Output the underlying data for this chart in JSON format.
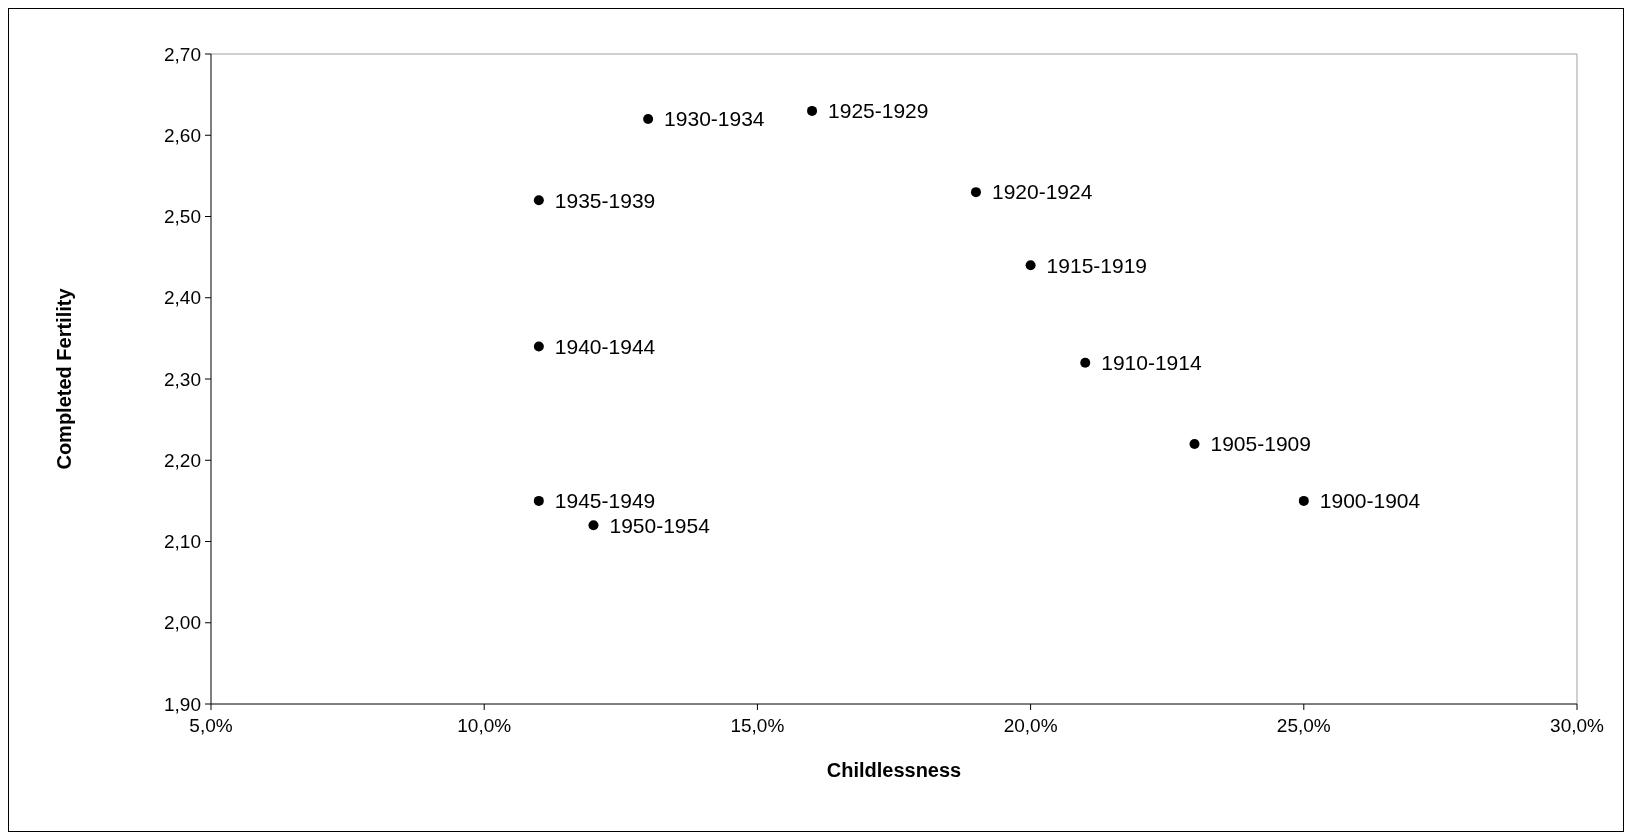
{
  "chart_data": {
    "type": "scatter",
    "xlabel": "Childlessness",
    "ylabel": "Completed Fertility",
    "x": [
      13,
      16,
      11,
      19,
      20,
      11,
      21,
      23,
      25,
      11,
      12
    ],
    "series": [
      {
        "color": "#000000",
        "values": [
          2.62,
          2.63,
          2.52,
          2.53,
          2.44,
          2.34,
          2.32,
          2.22,
          2.15,
          2.15,
          2.12
        ]
      }
    ],
    "annotations": [
      {
        "text": "1930-1934",
        "x": 13,
        "y": 2.62
      },
      {
        "text": "1925-1929",
        "x": 16,
        "y": 2.63
      },
      {
        "text": "1935-1939",
        "x": 11,
        "y": 2.52
      },
      {
        "text": "1920-1924",
        "x": 19,
        "y": 2.53
      },
      {
        "text": "1915-1919",
        "x": 20,
        "y": 2.44
      },
      {
        "text": "1940-1944",
        "x": 11,
        "y": 2.34
      },
      {
        "text": "1910-1914",
        "x": 21,
        "y": 2.32
      },
      {
        "text": "1905-1909",
        "x": 23,
        "y": 2.22
      },
      {
        "text": "1900-1904",
        "x": 25,
        "y": 2.15
      },
      {
        "text": "1945-1949",
        "x": 11,
        "y": 2.15
      },
      {
        "text": "1950-1954",
        "x": 12,
        "y": 2.12
      }
    ],
    "xlim": [
      5,
      30
    ],
    "xticks": [
      {
        "value": 5,
        "label": "5,0%"
      },
      {
        "value": 10,
        "label": "10,0%"
      },
      {
        "value": 15,
        "label": "15,0%"
      },
      {
        "value": 20,
        "label": "20,0%"
      },
      {
        "value": 25,
        "label": "25,0%"
      },
      {
        "value": 30,
        "label": "30,0%"
      }
    ],
    "ylim": [
      1.9,
      2.7
    ],
    "yticks": [
      {
        "value": 1.9,
        "label": "1,90"
      },
      {
        "value": 2.0,
        "label": "2,00"
      },
      {
        "value": 2.1,
        "label": "2,10"
      },
      {
        "value": 2.2,
        "label": "2,20"
      },
      {
        "value": 2.3,
        "label": "2,30"
      },
      {
        "value": 2.4,
        "label": "2,40"
      },
      {
        "value": 2.5,
        "label": "2,50"
      },
      {
        "value": 2.6,
        "label": "2,60"
      },
      {
        "value": 2.7,
        "label": "2,70"
      }
    ],
    "marker": "circle"
  }
}
